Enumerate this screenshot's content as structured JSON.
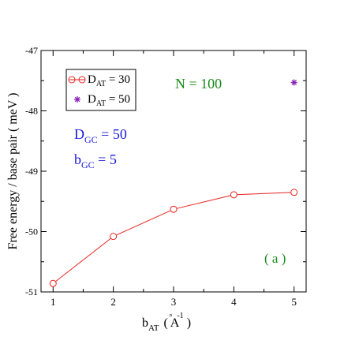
{
  "chart_data": {
    "type": "line",
    "xlabel": {
      "main": "b",
      "sub": "AT",
      "paren_open": "(",
      "unit": "A",
      "unit_accent": "°",
      "unit_sup": "-1",
      "paren_close": ")"
    },
    "ylabel": "Free energy  /  base pair ( meV )",
    "xlim": [
      0.8,
      5.2
    ],
    "ylim": [
      -51,
      -47
    ],
    "x_ticks": [
      1,
      2,
      3,
      4,
      5
    ],
    "y_ticks": [
      -51,
      -50,
      -49,
      -48,
      -47
    ],
    "x_tick_labels": [
      "1",
      "2",
      "3",
      "4",
      "5"
    ],
    "y_tick_labels": [
      "-51",
      "-50",
      "-49",
      "-48",
      "-47"
    ],
    "series": [
      {
        "name": "D_AT = 30",
        "legend": {
          "main": "D",
          "sub": "AT",
          "rest": " = 30"
        },
        "color": "#e8231f",
        "marker": "circle",
        "line": true,
        "x": [
          1,
          2,
          3,
          4,
          5
        ],
        "y": [
          -50.86,
          -50.08,
          -49.63,
          -49.39,
          -49.35
        ]
      },
      {
        "name": "D_AT = 50",
        "legend": {
          "main": "D",
          "sub": "AT",
          "rest": " = 50"
        },
        "color": "#8b22b8",
        "marker": "asterisk",
        "line": false,
        "x": [
          5
        ],
        "y": [
          -47.53
        ]
      }
    ],
    "legend_position": "top-left",
    "annotations": {
      "n_label": "N = 100",
      "n_color": "#1a8a1a",
      "dgc": {
        "main": "D",
        "sub": "GC",
        "rest": " = 50"
      },
      "bgc": {
        "main": "b",
        "sub": "GC",
        "rest": " = 5"
      },
      "params_color": "#1a1adc",
      "panel_label": "( a )",
      "panel_color": "#1a8a1a"
    }
  }
}
